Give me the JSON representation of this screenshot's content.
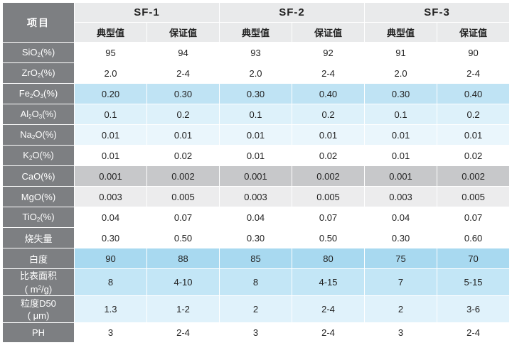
{
  "header": {
    "item_label": "项目",
    "groups": [
      "SF-1",
      "SF-2",
      "SF-3"
    ],
    "sub_typical": "典型值",
    "sub_guaranteed": "保证值"
  },
  "rows": [
    {
      "base": "SiO",
      "sub": "2",
      "rest": "(%)",
      "values": [
        "95",
        "94",
        "93",
        "92",
        "91",
        "90"
      ]
    },
    {
      "base": "ZrO",
      "sub": "2",
      "rest": "(%)",
      "values": [
        "2.0",
        "2-4",
        "2.0",
        "2-4",
        "2.0",
        "2-4"
      ]
    },
    {
      "base": "Fe",
      "sub": "2",
      "mid": "O",
      "sub2": "3",
      "rest": "(%)",
      "values": [
        "0.20",
        "0.30",
        "0.30",
        "0.40",
        "0.30",
        "0.40"
      ]
    },
    {
      "base": "Al",
      "sub": "2",
      "mid": "O",
      "sub2": "3",
      "rest": "(%)",
      "values": [
        "0.1",
        "0.2",
        "0.1",
        "0.2",
        "0.1",
        "0.2"
      ]
    },
    {
      "base": "Na",
      "sub": "2",
      "rest": "O(%)",
      "values": [
        "0.01",
        "0.01",
        "0.01",
        "0.01",
        "0.01",
        "0.01"
      ]
    },
    {
      "base": "K",
      "sub": "2",
      "rest": "O(%)",
      "values": [
        "0.01",
        "0.02",
        "0.01",
        "0.02",
        "0.01",
        "0.02"
      ]
    },
    {
      "label": "CaO(%)",
      "values": [
        "0.001",
        "0.002",
        "0.001",
        "0.002",
        "0.001",
        "0.002"
      ]
    },
    {
      "label": "MgO(%)",
      "values": [
        "0.003",
        "0.005",
        "0.003",
        "0.005",
        "0.003",
        "0.005"
      ]
    },
    {
      "base": "TiO",
      "sub": "2",
      "rest": "(%)",
      "values": [
        "0.04",
        "0.07",
        "0.04",
        "0.07",
        "0.04",
        "0.07"
      ]
    },
    {
      "label": "烧失量",
      "values": [
        "0.30",
        "0.50",
        "0.30",
        "0.50",
        "0.30",
        "0.60"
      ]
    },
    {
      "label": "白度",
      "values": [
        "90",
        "88",
        "85",
        "80",
        "75",
        "70"
      ]
    },
    {
      "line1": "比表面积",
      "line2a": "( m",
      "line2sup": "2",
      "line2b": "/g)",
      "values": [
        "8",
        "4-10",
        "8",
        "4-15",
        "7",
        "5-15"
      ]
    },
    {
      "line1": "粒度D50",
      "line2": "( μm)",
      "values": [
        "1.3",
        "1-2",
        "2",
        "2-4",
        "2",
        "3-6"
      ]
    },
    {
      "label": "PH",
      "values": [
        "3",
        "2-4",
        "3",
        "2-4",
        "3",
        "2-4"
      ]
    }
  ]
}
